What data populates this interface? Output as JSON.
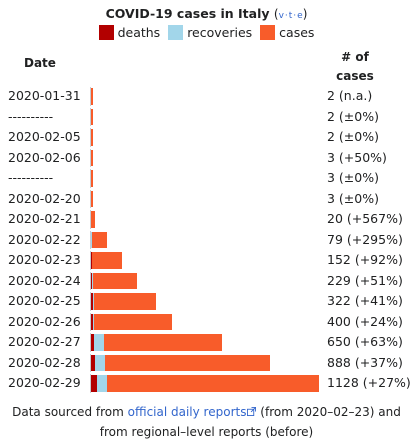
{
  "chart_data": {
    "type": "bar",
    "title": "COVID-19 cases in Italy",
    "title_links": [
      "v",
      "t",
      "e"
    ],
    "legend": [
      {
        "name": "deaths",
        "color": "#b20000"
      },
      {
        "name": "recoveries",
        "color": "#a2d6ea"
      },
      {
        "name": "cases",
        "color": "#f85c2a"
      }
    ],
    "column_headers": {
      "date": "Date",
      "cases": "# of\ncases"
    },
    "x_max": 1128,
    "rows": [
      {
        "date": "2020-01-31",
        "deaths": 0,
        "recoveries": 0,
        "cases": 2,
        "label": "2 (n.a.)"
      },
      {
        "date": "----------",
        "deaths": 0,
        "recoveries": 0,
        "cases": 2,
        "label": "2 (±0%)"
      },
      {
        "date": "2020-02-05",
        "deaths": 0,
        "recoveries": 0,
        "cases": 2,
        "label": "2 (±0%)"
      },
      {
        "date": "2020-02-06",
        "deaths": 0,
        "recoveries": 0,
        "cases": 3,
        "label": "3 (+50%)"
      },
      {
        "date": "----------",
        "deaths": 0,
        "recoveries": 0,
        "cases": 3,
        "label": "3 (±0%)"
      },
      {
        "date": "2020-02-20",
        "deaths": 0,
        "recoveries": 0,
        "cases": 3,
        "label": "3 (±0%)"
      },
      {
        "date": "2020-02-21",
        "deaths": 1,
        "recoveries": 0,
        "cases": 20,
        "label": "20 (+567%)"
      },
      {
        "date": "2020-02-22",
        "deaths": 2,
        "recoveries": 1,
        "cases": 79,
        "label": "79 (+295%)"
      },
      {
        "date": "2020-02-23",
        "deaths": 3,
        "recoveries": 2,
        "cases": 152,
        "label": "152 (+92%)"
      },
      {
        "date": "2020-02-24",
        "deaths": 7,
        "recoveries": 3,
        "cases": 229,
        "label": "229 (+51%)"
      },
      {
        "date": "2020-02-25",
        "deaths": 10,
        "recoveries": 3,
        "cases": 322,
        "label": "322 (+41%)"
      },
      {
        "date": "2020-02-26",
        "deaths": 12,
        "recoveries": 3,
        "cases": 400,
        "label": "400 (+24%)"
      },
      {
        "date": "2020-02-27",
        "deaths": 17,
        "recoveries": 45,
        "cases": 650,
        "label": "650 (+63%)"
      },
      {
        "date": "2020-02-28",
        "deaths": 21,
        "recoveries": 46,
        "cases": 888,
        "label": "888 (+37%)"
      },
      {
        "date": "2020-02-29",
        "deaths": 29,
        "recoveries": 50,
        "cases": 1128,
        "label": "1128 (+27%)"
      }
    ]
  },
  "footer": {
    "prefix": "Data sourced from ",
    "link": "official daily reports",
    "suffix": " (from 2020–02–23) and",
    "line2": "from regional–level reports (before)"
  }
}
